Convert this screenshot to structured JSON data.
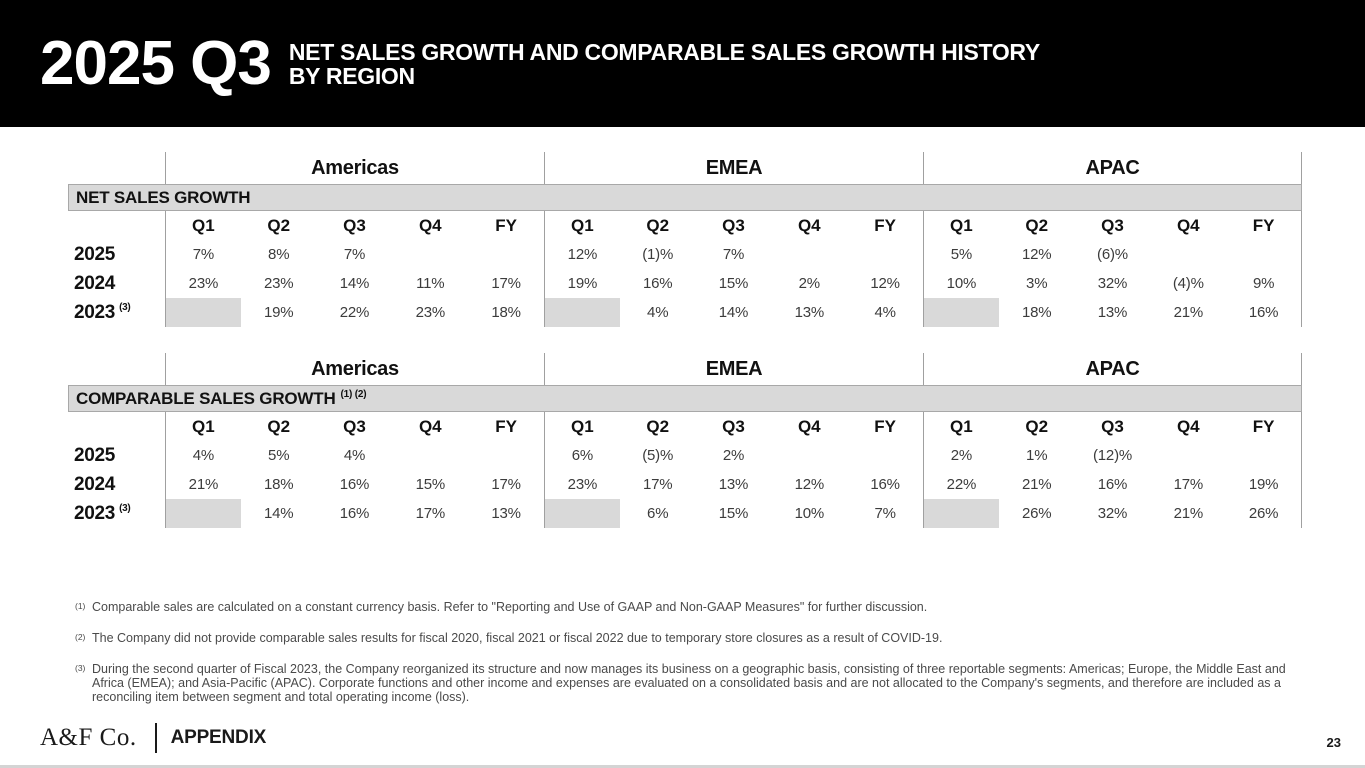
{
  "header": {
    "quarter_label": "2025 Q3",
    "title_line1": "NET SALES GROWTH AND COMPARABLE SALES GROWTH HISTORY",
    "title_line2": "BY REGION"
  },
  "regions": [
    "Americas",
    "EMEA",
    "APAC"
  ],
  "quarter_columns": [
    "Q1",
    "Q2",
    "Q3",
    "Q4",
    "FY"
  ],
  "tables": [
    {
      "section_title": "NET SALES GROWTH",
      "section_superscript": "",
      "rows": [
        {
          "year": "2025",
          "year_superscript": "",
          "values": [
            "7%",
            "8%",
            "7%",
            "",
            "",
            "12%",
            "(1)%",
            "7%",
            "",
            "",
            "5%",
            "12%",
            "(6)%",
            "",
            ""
          ],
          "shaded_cells": []
        },
        {
          "year": "2024",
          "year_superscript": "",
          "values": [
            "23%",
            "23%",
            "14%",
            "11%",
            "17%",
            "19%",
            "16%",
            "15%",
            "2%",
            "12%",
            "10%",
            "3%",
            "32%",
            "(4)%",
            "9%"
          ],
          "shaded_cells": []
        },
        {
          "year": "2023",
          "year_superscript": "(3)",
          "values": [
            "",
            "19%",
            "22%",
            "23%",
            "18%",
            "",
            "4%",
            "14%",
            "13%",
            "4%",
            "",
            "18%",
            "13%",
            "21%",
            "16%"
          ],
          "shaded_cells": [
            0,
            5,
            10
          ]
        }
      ]
    },
    {
      "section_title": "COMPARABLE SALES GROWTH",
      "section_superscript": "(1) (2)",
      "rows": [
        {
          "year": "2025",
          "year_superscript": "",
          "values": [
            "4%",
            "5%",
            "4%",
            "",
            "",
            "6%",
            "(5)%",
            "2%",
            "",
            "",
            "2%",
            "1%",
            "(12)%",
            "",
            ""
          ],
          "shaded_cells": []
        },
        {
          "year": "2024",
          "year_superscript": "",
          "values": [
            "21%",
            "18%",
            "16%",
            "15%",
            "17%",
            "23%",
            "17%",
            "13%",
            "12%",
            "16%",
            "22%",
            "21%",
            "16%",
            "17%",
            "19%"
          ],
          "shaded_cells": []
        },
        {
          "year": "2023",
          "year_superscript": "(3)",
          "values": [
            "",
            "14%",
            "16%",
            "17%",
            "13%",
            "",
            "6%",
            "15%",
            "10%",
            "7%",
            "",
            "26%",
            "32%",
            "21%",
            "26%"
          ],
          "shaded_cells": [
            0,
            5,
            10
          ]
        }
      ]
    }
  ],
  "footnotes": [
    {
      "marker": "(1)",
      "text": "Comparable sales are calculated on a constant currency basis. Refer to \"Reporting and Use of GAAP and Non-GAAP Measures\" for further discussion."
    },
    {
      "marker": "(2)",
      "text": "The Company did not provide comparable sales results for fiscal 2020, fiscal 2021 or fiscal 2022 due to temporary store closures as a result of COVID-19."
    },
    {
      "marker": "(3)",
      "text": "During the second quarter of Fiscal 2023, the Company reorganized its structure and now manages its business on a geographic basis, consisting of three reportable segments: Americas; Europe, the Middle East and Africa (EMEA); and Asia-Pacific (APAC). Corporate functions and other income and expenses are evaluated on a consolidated basis and are not allocated to the Company's segments, and therefore are included as a reconciling item between segment and total operating income (loss)."
    }
  ],
  "footer": {
    "logo_text": "A&F Co.",
    "section_label": "APPENDIX",
    "page_number": "23"
  },
  "colors": {
    "header_bg": "#000000",
    "banner_bg": "#d9d9d9",
    "shaded_cell": "#d9d9d9",
    "line_gray": "#a0a0a0"
  }
}
